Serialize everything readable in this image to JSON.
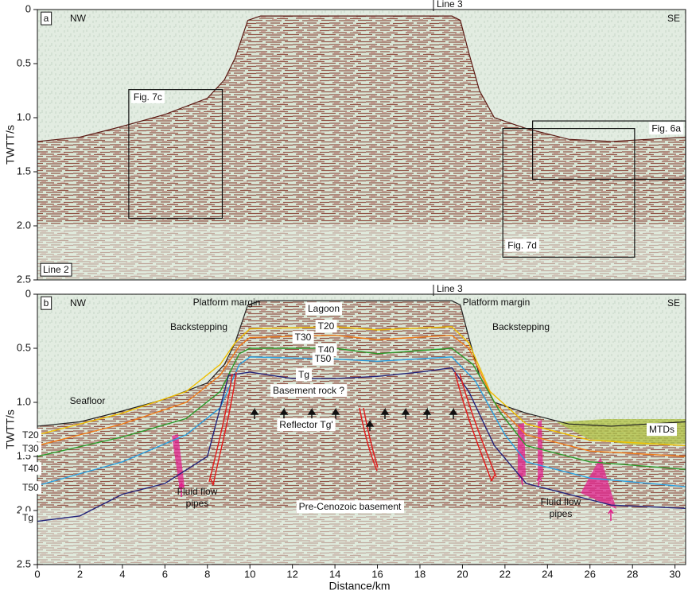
{
  "chart_data": [
    {
      "type": "seismic-section",
      "ylabel": "TWTT/s",
      "y_inverted": true,
      "xlim": [
        0,
        30.5
      ],
      "ylim": [
        0,
        2.5
      ],
      "yticks": [
        0,
        0.5,
        {
          "value": 1,
          "label": "1.0"
        },
        1.5,
        {
          "value": 2,
          "label": "2.0"
        },
        2.5
      ],
      "annotations": [
        "a",
        "NW",
        "SE",
        "Line 3",
        "Line 2"
      ],
      "boxes": [
        {
          "label": "Fig. 7c",
          "x": [
            4.3,
            8.7
          ],
          "y": [
            0.74,
            1.93
          ]
        },
        {
          "label": "Fig. 6a",
          "x": [
            23.3,
            30.5
          ],
          "y": [
            1.03,
            1.57
          ]
        },
        {
          "label": "Fig. 7d",
          "x": [
            21.9,
            28.1
          ],
          "y": [
            1.1,
            2.29
          ]
        }
      ],
      "series": [
        {
          "color": "#5a1a14",
          "x": [
            0,
            2,
            4,
            6,
            8,
            8.8,
            9.3,
            9.9,
            10.5,
            19.5,
            19.9,
            20.3,
            20.8,
            21.5,
            23,
            25,
            27,
            30.5
          ],
          "values": [
            1.22,
            1.18,
            1.08,
            0.97,
            0.82,
            0.65,
            0.45,
            0.1,
            0.06,
            0.06,
            0.1,
            0.4,
            0.75,
            1.0,
            1.1,
            1.2,
            1.22,
            1.18
          ]
        }
      ]
    },
    {
      "type": "seismic-section",
      "ylabel": "TWTT/s",
      "xlabel": "Distance/km",
      "y_inverted": true,
      "xlim": [
        0,
        30.5
      ],
      "ylim": [
        0,
        2.5
      ],
      "xticks": [
        0,
        2,
        4,
        6,
        8,
        10,
        12,
        14,
        16,
        18,
        20,
        22,
        24,
        26,
        28,
        30
      ],
      "yticks": [
        0,
        0.5,
        {
          "value": 1,
          "label": "1.0"
        },
        1.5,
        {
          "value": 2,
          "label": "2.0"
        },
        2.5
      ],
      "annotations": [
        "b",
        "NW",
        "SE",
        "Line 3",
        "Platform margin",
        "Platform margin",
        "Lagoon",
        "Backstepping",
        "Backstepping",
        "Basement rock ?",
        "Reflector Tg'",
        "Pre-Cenozoic basement",
        "Fluid flow",
        "pipes",
        "Fluid flow",
        "pipes",
        "MTDs"
      ],
      "series": [
        {
          "name": "Seafloor",
          "color": "#222222",
          "x": [
            0,
            2,
            4,
            6,
            8,
            8.8,
            9.3,
            9.9,
            10.5,
            19.5,
            19.9,
            20.3,
            20.8,
            21.5,
            23,
            25,
            27,
            30.5
          ],
          "values": [
            1.22,
            1.18,
            1.08,
            0.97,
            0.82,
            0.65,
            0.45,
            0.1,
            0.06,
            0.06,
            0.1,
            0.4,
            0.75,
            1.0,
            1.1,
            1.2,
            1.22,
            1.18
          ]
        },
        {
          "name": "T20",
          "color": "#f0c000",
          "x": [
            0,
            4,
            7,
            8.6,
            9.3,
            10,
            14,
            16,
            19.5,
            20.3,
            21.3,
            23,
            26,
            30.5
          ],
          "values": [
            1.3,
            1.1,
            0.9,
            0.65,
            0.45,
            0.32,
            0.3,
            0.33,
            0.3,
            0.45,
            0.9,
            1.2,
            1.35,
            1.4
          ]
        },
        {
          "name": "T30",
          "color": "#f07a18",
          "x": [
            0,
            4,
            7,
            8.6,
            9.5,
            10,
            14,
            16,
            19.5,
            20.3,
            21.5,
            23,
            26,
            30.5
          ],
          "values": [
            1.4,
            1.2,
            1.0,
            0.75,
            0.48,
            0.4,
            0.38,
            0.42,
            0.38,
            0.5,
            1.0,
            1.3,
            1.45,
            1.5
          ]
        },
        {
          "name": "T40",
          "color": "#2a9a2a",
          "x": [
            0,
            4,
            7,
            8.6,
            9.5,
            10,
            14,
            16,
            19.5,
            20.5,
            21.8,
            23,
            26,
            30.5
          ],
          "values": [
            1.5,
            1.32,
            1.15,
            0.9,
            0.55,
            0.5,
            0.5,
            0.55,
            0.5,
            0.65,
            1.1,
            1.4,
            1.55,
            1.62
          ]
        },
        {
          "name": "T50",
          "color": "#2aa0e0",
          "x": [
            0,
            4,
            7,
            8.6,
            9.5,
            10,
            14,
            16,
            19.5,
            20.6,
            22,
            23,
            26,
            30.5
          ],
          "values": [
            1.77,
            1.55,
            1.3,
            1.05,
            0.65,
            0.58,
            0.6,
            0.62,
            0.58,
            0.8,
            1.3,
            1.55,
            1.7,
            1.78
          ]
        },
        {
          "name": "Tg",
          "color": "#23237a",
          "x": [
            0,
            2,
            4,
            6,
            8,
            9,
            10,
            12,
            14,
            16,
            18,
            19.5,
            20.3,
            21.5,
            23,
            25,
            27,
            30.5
          ],
          "values": [
            2.1,
            2.05,
            1.85,
            1.75,
            1.5,
            0.75,
            0.72,
            0.78,
            0.78,
            0.76,
            0.72,
            0.68,
            0.9,
            1.4,
            1.75,
            1.85,
            1.95,
            1.98
          ]
        }
      ]
    }
  ]
}
